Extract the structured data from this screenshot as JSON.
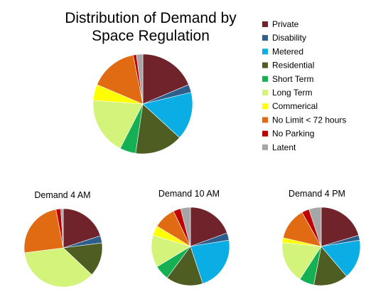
{
  "chart_data": [
    {
      "type": "pie",
      "title_lines": [
        "Distribution of Demand by",
        "Space Regulation"
      ],
      "legend": "right",
      "categories": [
        "Private",
        "Disability",
        "Metered",
        "Residential",
        "Short Term",
        "Long Term",
        "Commerical",
        "No Limit < 72 hours",
        "No Parking",
        "Latent"
      ],
      "values": [
        18,
        2.5,
        15,
        15,
        5,
        18,
        5,
        15,
        1,
        2
      ]
    },
    {
      "type": "pie",
      "title": "Demand 4 AM",
      "categories": [
        "Private",
        "Disability",
        "Metered",
        "Residential",
        "Short Term",
        "Long Term",
        "Commerical",
        "No Limit < 72 hours",
        "No Parking",
        "Latent"
      ],
      "values": [
        20,
        3,
        0,
        14,
        0,
        36,
        0,
        24,
        2,
        1
      ]
    },
    {
      "type": "pie",
      "title": "Demand 10 AM",
      "categories": [
        "Private",
        "Disability",
        "Metered",
        "Residential",
        "Short Term",
        "Long Term",
        "Commerical",
        "No Limit < 72 hours",
        "No Parking",
        "Latent"
      ],
      "values": [
        19,
        3,
        22,
        15,
        6,
        13,
        4,
        9,
        3,
        4
      ]
    },
    {
      "type": "pie",
      "title": "Demand 4 PM",
      "categories": [
        "Private",
        "Disability",
        "Metered",
        "Residential",
        "Short Term",
        "Long Term",
        "Commerical",
        "No Limit < 72 hours",
        "No Parking",
        "Latent"
      ],
      "values": [
        20,
        2,
        16,
        14,
        6,
        17,
        2,
        13,
        3,
        5
      ]
    }
  ],
  "colors": [
    "#70232a",
    "#2e5e8c",
    "#0aaee4",
    "#4e5e23",
    "#14b053",
    "#d3f37b",
    "#ffff00",
    "#e06b12",
    "#c00000",
    "#a6a6a6"
  ]
}
